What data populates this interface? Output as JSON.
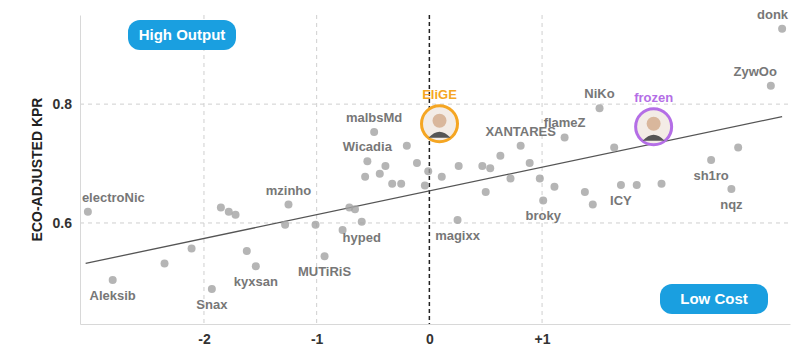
{
  "chart_data": {
    "type": "scatter",
    "y_label": "ECO-ADJUSTED KPR",
    "annotations": [
      "High Output",
      "Low Cost"
    ],
    "xlim": [
      -3.1,
      3.2
    ],
    "ylim": [
      0.43,
      0.95
    ],
    "xticks": [
      -2,
      -1,
      0,
      {
        "value": 1,
        "label": "+1"
      }
    ],
    "yticks": [
      0.6,
      0.8
    ],
    "grid": true,
    "series": [
      {
        "type": "scatter",
        "marker": "circle",
        "color": "#a3a3a3",
        "x": [
          3.13,
          3.03,
          1.51,
          0.81,
          1.2,
          -0.49,
          -0.55,
          -1.25,
          -3.03,
          -0.6,
          0.25,
          1.01,
          1.7,
          2.5,
          2.68,
          -0.93,
          -1.54,
          -1.93,
          -2.81,
          -2.35,
          -2.11,
          -1.85,
          -1.78,
          -1.72,
          -1.62,
          -1.28,
          -1.01,
          -0.77,
          -0.71,
          -0.66,
          -0.57,
          -0.44,
          -0.39,
          -0.33,
          -0.25,
          -0.2,
          -0.11,
          -0.04,
          -0.01,
          0.11,
          0.26,
          0.47,
          0.5,
          0.54,
          0.63,
          0.72,
          0.89,
          0.98,
          1.11,
          1.38,
          1.45,
          1.64,
          1.84,
          2.06,
          2.74
        ],
        "values": [
          0.927,
          0.831,
          0.793,
          0.73,
          0.744,
          0.753,
          0.704,
          0.631,
          0.619,
          0.602,
          0.605,
          0.638,
          0.664,
          0.706,
          0.657,
          0.544,
          0.527,
          0.489,
          0.504,
          0.532,
          0.557,
          0.626,
          0.619,
          0.614,
          0.553,
          0.597,
          0.597,
          0.588,
          0.626,
          0.623,
          0.678,
          0.683,
          0.696,
          0.666,
          0.666,
          0.73,
          0.701,
          0.663,
          0.687,
          0.678,
          0.696,
          0.696,
          0.652,
          0.692,
          0.713,
          0.675,
          0.701,
          0.675,
          0.661,
          0.652,
          0.631,
          0.727,
          0.664,
          0.666,
          0.727
        ],
        "labels": [
          "donk",
          "ZywOo",
          "NiKo",
          "XANTARES",
          "flameZ",
          "malbsMd",
          "Wicadia",
          "mzinho",
          "electroNic",
          "hyped",
          "magixx",
          "broky",
          "ICY",
          "sh1ro",
          "nqz",
          "MUTiRiS",
          "kyxsan",
          "Snax",
          "Aleksib",
          null,
          null,
          null,
          null,
          null,
          null,
          null,
          null,
          null,
          null,
          null,
          null,
          null,
          null,
          null,
          null,
          null,
          null,
          null,
          null,
          null,
          null,
          null,
          null,
          null,
          null,
          null,
          null,
          null,
          null,
          null,
          null,
          null,
          null,
          null,
          null
        ]
      },
      {
        "type": "line",
        "line_style": "solid",
        "color": "#555555",
        "x": [
          -3.05,
          3.13
        ],
        "values": [
          0.532,
          0.779
        ]
      },
      {
        "type": "scatter",
        "marker": "avatar",
        "x": [
          0.09,
          1.99
        ],
        "values": [
          0.767,
          0.762
        ],
        "labels": [
          "EliGE",
          "frozen"
        ],
        "colors": [
          "#f5a623",
          "#b46ee6"
        ]
      }
    ]
  }
}
